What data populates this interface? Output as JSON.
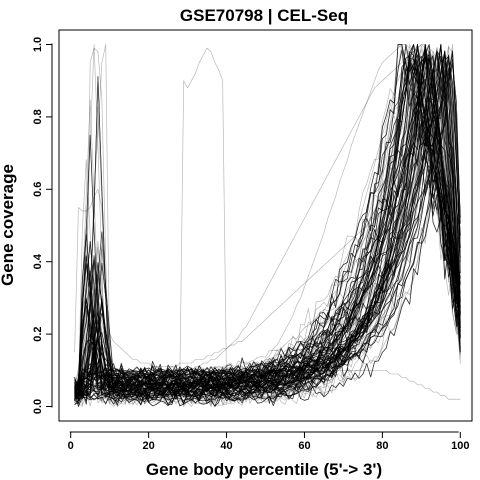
{
  "chart_data": {
    "type": "line",
    "title": "GSE70798 | CEL-Seq",
    "xlabel": "Gene body percentile (5'-> 3')",
    "ylabel": "Gene coverage",
    "xlim": [
      -3,
      103
    ],
    "ylim": [
      -0.04,
      1.04
    ],
    "x_ticks": [
      0,
      20,
      40,
      60,
      80,
      100
    ],
    "y_ticks": [
      0.0,
      0.2,
      0.4,
      0.6,
      0.8,
      1.0
    ],
    "x_tick_labels": [
      "0",
      "20",
      "40",
      "60",
      "80",
      "100"
    ],
    "y_tick_labels": [
      "0.0",
      "0.2",
      "0.4",
      "0.6",
      "0.8",
      "1.0"
    ],
    "grid": false,
    "legend": "none",
    "line_color": "#000000",
    "line_alpha": 0.28,
    "series_count": 300,
    "series_description": "Per-sample coverage curves over gene body percentiles 1-100; most curves stay near 0.02-0.1 up to ~50, rise steeply after ~60 and peak at 1.0 between ~85 and ~99, with a sharp 5' spike at ~3-9.",
    "x": [
      1,
      2,
      3,
      4,
      5,
      6,
      7,
      8,
      9,
      10,
      11,
      12,
      13,
      14,
      15,
      16,
      17,
      18,
      19,
      20,
      21,
      22,
      23,
      24,
      25,
      26,
      27,
      28,
      29,
      30,
      31,
      32,
      33,
      34,
      35,
      36,
      37,
      38,
      39,
      40,
      41,
      42,
      43,
      44,
      45,
      46,
      47,
      48,
      49,
      50,
      51,
      52,
      53,
      54,
      55,
      56,
      57,
      58,
      59,
      60,
      61,
      62,
      63,
      64,
      65,
      66,
      67,
      68,
      69,
      70,
      71,
      72,
      73,
      74,
      75,
      76,
      77,
      78,
      79,
      80,
      81,
      82,
      83,
      84,
      85,
      86,
      87,
      88,
      89,
      90,
      91,
      92,
      93,
      94,
      95,
      96,
      97,
      98,
      99,
      100
    ],
    "representative_series": [
      {
        "values": [
          0.02,
          0.03,
          0.05,
          0.2,
          0.95,
          0.99,
          0.98,
          0.85,
          0.4,
          0.08,
          0.05,
          0.04,
          0.04,
          0.05,
          0.05,
          0.04,
          0.05,
          0.05,
          0.06,
          0.05,
          0.05,
          0.06,
          0.05,
          0.06,
          0.06,
          0.06,
          0.07,
          0.06,
          0.9,
          0.88,
          0.9,
          0.92,
          0.95,
          0.97,
          0.99,
          0.98,
          0.95,
          0.93,
          0.9,
          0.06,
          0.06,
          0.07,
          0.07,
          0.08,
          0.08,
          0.09,
          0.1,
          0.11,
          0.12,
          0.13,
          0.14,
          0.16,
          0.17,
          0.19,
          0.21,
          0.23,
          0.25,
          0.28,
          0.3,
          0.33,
          0.36,
          0.39,
          0.42,
          0.45,
          0.48,
          0.52,
          0.55,
          0.58,
          0.62,
          0.65,
          0.68,
          0.72,
          0.75,
          0.78,
          0.81,
          0.84,
          0.87,
          0.9,
          0.93,
          0.95,
          0.96,
          0.97,
          0.98,
          0.99,
          1.0,
          1.0,
          0.99,
          0.98,
          0.97,
          0.96,
          0.95,
          0.93,
          0.9,
          0.85,
          0.8,
          0.72,
          0.62,
          0.5,
          0.38,
          0.25
        ]
      },
      {
        "values": [
          0.03,
          0.02,
          0.04,
          0.08,
          0.3,
          0.6,
          0.75,
          0.95,
          1.0,
          0.1,
          0.05,
          0.04,
          0.05,
          0.05,
          0.06,
          0.06,
          0.06,
          0.07,
          0.07,
          0.07,
          0.07,
          0.08,
          0.08,
          0.08,
          0.08,
          0.09,
          0.09,
          0.09,
          0.1,
          0.1,
          0.1,
          0.11,
          0.11,
          0.12,
          0.12,
          0.13,
          0.13,
          0.14,
          0.15,
          0.16,
          0.17,
          0.18,
          0.19,
          0.21,
          0.22,
          0.24,
          0.26,
          0.28,
          0.3,
          0.32,
          0.34,
          0.36,
          0.38,
          0.4,
          0.42,
          0.44,
          0.46,
          0.48,
          0.5,
          0.52,
          0.54,
          0.56,
          0.58,
          0.6,
          0.62,
          0.64,
          0.66,
          0.68,
          0.7,
          0.72,
          0.74,
          0.76,
          0.78,
          0.8,
          0.82,
          0.84,
          0.86,
          0.88,
          0.89,
          0.9,
          0.91,
          0.92,
          0.93,
          0.94,
          0.95,
          0.96,
          0.97,
          0.98,
          0.99,
          1.0,
          1.0,
          0.99,
          0.98,
          0.96,
          0.93,
          0.88,
          0.8,
          0.65,
          0.45,
          0.3
        ]
      },
      {
        "values": [
          0.01,
          0.02,
          0.02,
          0.03,
          0.04,
          0.05,
          0.05,
          0.06,
          0.05,
          0.04,
          0.04,
          0.03,
          0.03,
          0.03,
          0.03,
          0.03,
          0.03,
          0.03,
          0.03,
          0.03,
          0.03,
          0.03,
          0.03,
          0.03,
          0.03,
          0.03,
          0.03,
          0.04,
          0.04,
          0.04,
          0.04,
          0.04,
          0.04,
          0.04,
          0.04,
          0.05,
          0.05,
          0.05,
          0.05,
          0.05,
          0.05,
          0.06,
          0.06,
          0.06,
          0.06,
          0.07,
          0.07,
          0.07,
          0.08,
          0.08,
          0.09,
          0.09,
          0.1,
          0.1,
          0.11,
          0.12,
          0.13,
          0.14,
          0.15,
          0.16,
          0.17,
          0.18,
          0.2,
          0.22,
          0.24,
          0.26,
          0.28,
          0.31,
          0.34,
          0.37,
          0.4,
          0.43,
          0.47,
          0.51,
          0.55,
          0.59,
          0.63,
          0.67,
          0.71,
          0.75,
          0.79,
          0.83,
          0.87,
          0.9,
          0.93,
          0.95,
          0.97,
          0.98,
          0.99,
          1.0,
          0.99,
          0.98,
          0.96,
          0.93,
          0.89,
          0.83,
          0.74,
          0.6,
          0.42,
          0.25
        ]
      },
      {
        "values": [
          0.15,
          0.55,
          0.54,
          0.54,
          0.55,
          0.58,
          0.6,
          0.55,
          0.3,
          0.2,
          0.18,
          0.17,
          0.16,
          0.15,
          0.14,
          0.13,
          0.13,
          0.12,
          0.12,
          0.12,
          0.11,
          0.11,
          0.11,
          0.11,
          0.11,
          0.11,
          0.11,
          0.12,
          0.12,
          0.12,
          0.12,
          0.13,
          0.13,
          0.13,
          0.14,
          0.14,
          0.15,
          0.15,
          0.16,
          0.16,
          0.17,
          0.17,
          0.18,
          0.18,
          0.19,
          0.2,
          0.21,
          0.22,
          0.23,
          0.24,
          0.25,
          0.26,
          0.27,
          0.28,
          0.29,
          0.3,
          0.31,
          0.32,
          0.33,
          0.34,
          0.35,
          0.36,
          0.37,
          0.38,
          0.39,
          0.4,
          0.41,
          0.42,
          0.43,
          0.44,
          0.45,
          0.46,
          0.47,
          0.48,
          0.49,
          0.5,
          0.52,
          0.54,
          0.56,
          0.58,
          0.6,
          0.62,
          0.64,
          0.66,
          0.68,
          0.7,
          0.72,
          0.74,
          0.76,
          0.78,
          0.8,
          0.82,
          0.84,
          0.86,
          0.88,
          0.85,
          0.75,
          0.6,
          0.4,
          0.22
        ]
      },
      {
        "values": [
          0.05,
          0.08,
          0.1,
          0.12,
          0.14,
          0.15,
          0.16,
          0.15,
          0.12,
          0.1,
          0.09,
          0.08,
          0.08,
          0.08,
          0.08,
          0.08,
          0.08,
          0.08,
          0.08,
          0.08,
          0.08,
          0.08,
          0.08,
          0.08,
          0.08,
          0.08,
          0.08,
          0.08,
          0.08,
          0.08,
          0.08,
          0.08,
          0.08,
          0.08,
          0.08,
          0.08,
          0.08,
          0.08,
          0.08,
          0.08,
          0.08,
          0.08,
          0.08,
          0.08,
          0.08,
          0.08,
          0.08,
          0.08,
          0.09,
          0.09,
          0.09,
          0.09,
          0.09,
          0.09,
          0.1,
          0.1,
          0.1,
          0.1,
          0.1,
          0.1,
          0.1,
          0.1,
          0.1,
          0.1,
          0.1,
          0.1,
          0.1,
          0.1,
          0.1,
          0.1,
          0.1,
          0.1,
          0.1,
          0.1,
          0.1,
          0.1,
          0.1,
          0.1,
          0.1,
          0.1,
          0.1,
          0.09,
          0.09,
          0.09,
          0.08,
          0.08,
          0.07,
          0.07,
          0.06,
          0.06,
          0.05,
          0.05,
          0.04,
          0.04,
          0.03,
          0.03,
          0.02,
          0.02,
          0.02,
          0.02
        ]
      }
    ]
  }
}
